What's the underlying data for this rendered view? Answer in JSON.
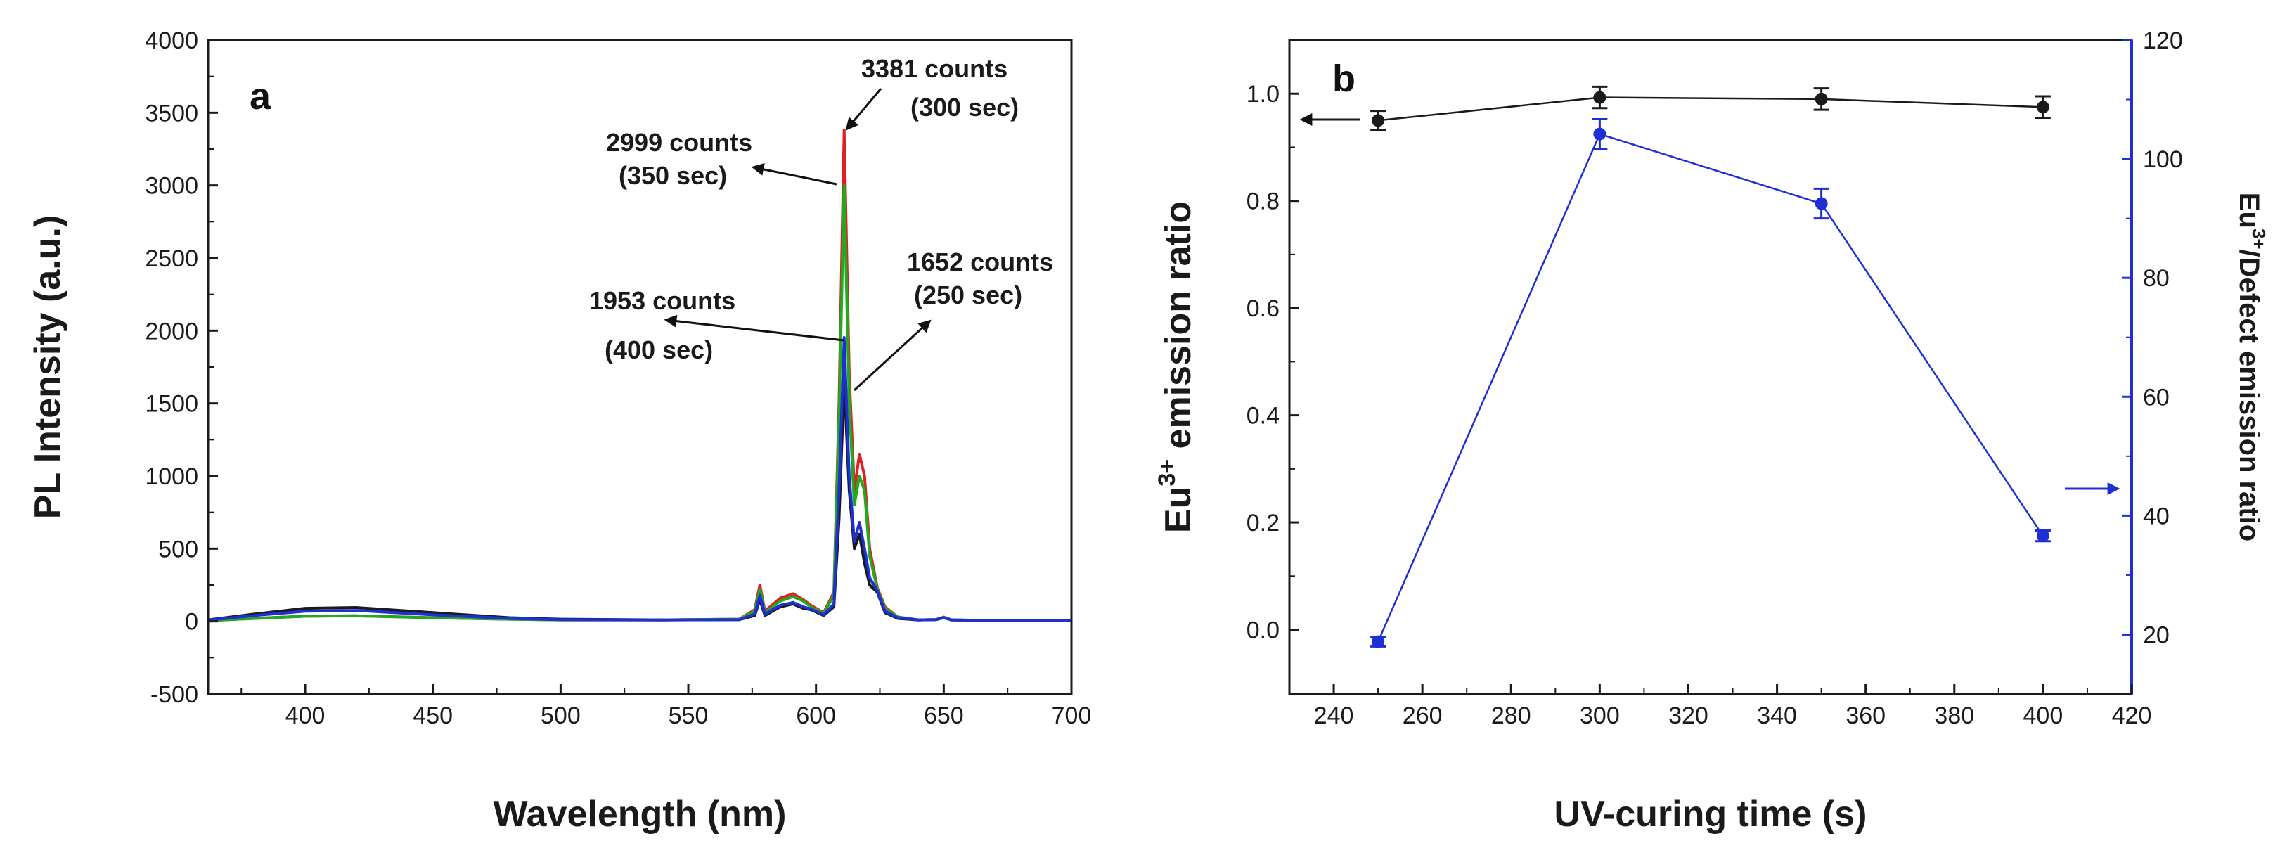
{
  "chart_data": [
    {
      "type": "line",
      "panel_label": "a",
      "xlabel": "Wavelength (nm)",
      "ylabel": "PL Intensity (a.u.)",
      "xlim": [
        362,
        700
      ],
      "ylim": [
        -500,
        4000
      ],
      "xticks": [
        400,
        450,
        500,
        550,
        600,
        650,
        700
      ],
      "yticks": [
        -500,
        0,
        500,
        1000,
        1500,
        2000,
        2500,
        3000,
        3500,
        4000
      ],
      "x": [
        362,
        380,
        400,
        420,
        450,
        480,
        500,
        540,
        570,
        576,
        578,
        580,
        586,
        591,
        595,
        598,
        603,
        607,
        609,
        611,
        613,
        615,
        617,
        619,
        621,
        624,
        627,
        632,
        640,
        647,
        650,
        653,
        670,
        700
      ],
      "series": [
        {
          "name": "250 sec",
          "color": "#1a1a1a",
          "values": [
            10,
            50,
            90,
            95,
            60,
            25,
            15,
            10,
            12,
            40,
            150,
            40,
            100,
            120,
            90,
            80,
            40,
            100,
            700,
            1652,
            900,
            500,
            600,
            400,
            250,
            200,
            60,
            20,
            10,
            12,
            25,
            10,
            5,
            5
          ]
        },
        {
          "name": "300 sec",
          "color": "#e02020",
          "values": [
            5,
            20,
            35,
            38,
            25,
            15,
            10,
            10,
            15,
            80,
            250,
            70,
            160,
            190,
            150,
            110,
            60,
            200,
            1500,
            3381,
            1700,
            900,
            1150,
            1000,
            500,
            230,
            100,
            30,
            10,
            12,
            30,
            10,
            5,
            5
          ]
        },
        {
          "name": "350 sec",
          "color": "#1faa1f",
          "values": [
            5,
            20,
            35,
            38,
            25,
            15,
            10,
            10,
            15,
            70,
            220,
            60,
            140,
            170,
            140,
            100,
            55,
            180,
            1400,
            2999,
            1500,
            800,
            1000,
            900,
            450,
            220,
            90,
            30,
            10,
            12,
            28,
            10,
            5,
            5
          ]
        },
        {
          "name": "400 sec",
          "color": "#1f2fd6",
          "values": [
            8,
            40,
            70,
            75,
            45,
            20,
            12,
            10,
            12,
            50,
            180,
            50,
            110,
            130,
            100,
            85,
            45,
            120,
            900,
            1953,
            1000,
            550,
            680,
            500,
            300,
            210,
            70,
            25,
            10,
            12,
            25,
            10,
            5,
            5
          ]
        }
      ],
      "annotations": [
        {
          "line1": "3381 counts",
          "line2": "(300 sec)"
        },
        {
          "line1": "2999 counts",
          "line2": "(350 sec)"
        },
        {
          "line1": "1652 counts",
          "line2": "(250 sec)"
        },
        {
          "line1": "1953 counts",
          "line2": "(400 sec)"
        }
      ]
    },
    {
      "type": "line",
      "panel_label": "b",
      "xlabel": "UV-curing time (s)",
      "ylabel_main": "Eu",
      "ylabel_sup": "3+",
      "ylabel_rest": " emission ratio",
      "y2label_main": "Eu",
      "y2label_sup": "3+",
      "y2label_rest": "/Defect emission ratio",
      "xlim": [
        230,
        420
      ],
      "ylim": [
        -0.12,
        1.1
      ],
      "y2lim": [
        10,
        120
      ],
      "xticks": [
        240,
        260,
        280,
        300,
        320,
        340,
        360,
        380,
        400,
        420
      ],
      "yticks": [
        0.0,
        0.2,
        0.4,
        0.6,
        0.8,
        1.0
      ],
      "ytick_labels": [
        "0.0",
        "0.2",
        "0.4",
        "0.6",
        "0.8",
        "1.0"
      ],
      "y2ticks": [
        20,
        40,
        60,
        80,
        100,
        120
      ],
      "x": [
        250,
        300,
        350,
        400
      ],
      "series": [
        {
          "name": "Eu3+ emission ratio",
          "axis": "left",
          "color": "#1a1a1a",
          "values": [
            0.95,
            0.993,
            0.99,
            0.975
          ],
          "errors": [
            0.018,
            0.02,
            0.02,
            0.02
          ]
        },
        {
          "name": "Eu3+/Defect emission ratio",
          "axis": "right",
          "color": "#1f2fd6",
          "values": [
            18.8,
            104.2,
            92.5,
            36.6
          ],
          "errors": [
            0.8,
            2.5,
            2.5,
            0.9
          ]
        }
      ]
    }
  ]
}
